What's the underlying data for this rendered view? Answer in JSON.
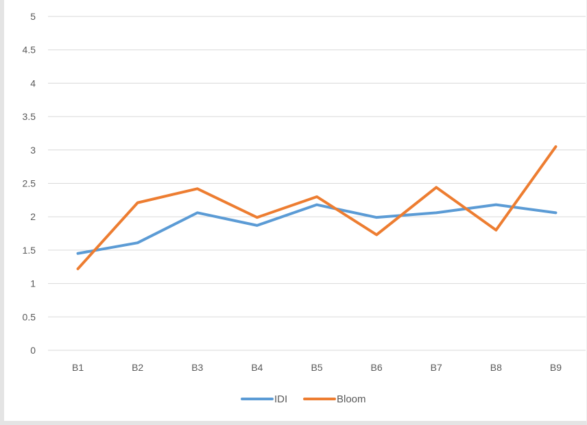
{
  "chart_data": {
    "type": "line",
    "categories": [
      "B1",
      "B2",
      "B3",
      "B4",
      "B5",
      "B6",
      "B7",
      "B8",
      "B9"
    ],
    "series": [
      {
        "name": "IDI",
        "color": "#5b9bd5",
        "values": [
          1.45,
          1.61,
          2.06,
          1.87,
          2.18,
          1.99,
          2.06,
          2.18,
          2.06
        ]
      },
      {
        "name": "Bloom",
        "color": "#ed7d31",
        "values": [
          1.22,
          2.21,
          2.42,
          1.99,
          2.3,
          1.73,
          2.44,
          1.8,
          3.05
        ]
      }
    ],
    "y_ticks": [
      "0",
      "0.5",
      "1",
      "1.5",
      "2",
      "2.5",
      "3",
      "3.5",
      "4",
      "4.5",
      "5"
    ],
    "ylim": [
      0,
      5
    ],
    "grid": true,
    "legend": "bottom",
    "gridline_color": "#d9d9d9"
  }
}
